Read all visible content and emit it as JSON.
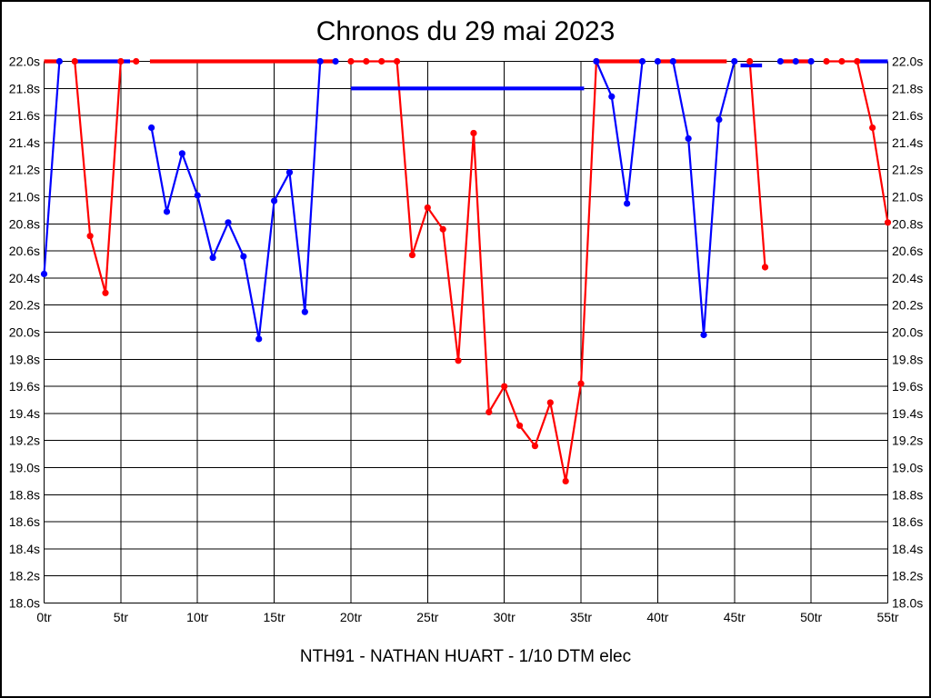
{
  "title": "Chronos du 29 mai 2023",
  "subtitle": "NTH91 - NATHAN HUART - 1/10 DTM elec",
  "colors": {
    "background": "#ffffff",
    "border": "#000000",
    "grid": "#000000",
    "text": "#000000",
    "series_blue": "#0000ff",
    "series_red": "#ff0000"
  },
  "chart_data": {
    "type": "line",
    "title": "Chronos du 29 mai 2023",
    "caption": "NTH91 - NATHAN HUART - 1/10 DTM elec",
    "x_unit": "tr",
    "y_unit": "s",
    "xlim": [
      0,
      55
    ],
    "ylim": [
      18.0,
      22.0
    ],
    "y_clip_max": 22.0,
    "grid": true,
    "legend": false,
    "x_ticks": [
      0,
      5,
      10,
      15,
      20,
      25,
      30,
      35,
      40,
      45,
      50,
      55
    ],
    "x_tick_labels": [
      "0tr",
      "5tr",
      "10tr",
      "15tr",
      "20tr",
      "25tr",
      "30tr",
      "35tr",
      "40tr",
      "45tr",
      "50tr",
      "55tr"
    ],
    "y_ticks": [
      22.0,
      21.8,
      21.6,
      21.4,
      21.2,
      21.0,
      20.8,
      20.6,
      20.4,
      20.2,
      20.0,
      19.8,
      19.6,
      19.4,
      19.2,
      19.0,
      18.8,
      18.6,
      18.4,
      18.2,
      18.0
    ],
    "y_tick_labels": [
      "22.0s",
      "21.8s",
      "21.6s",
      "21.4s",
      "21.2s",
      "21.0s",
      "20.8s",
      "20.6s",
      "20.4s",
      "20.2s",
      "20.0s",
      "19.8s",
      "19.6s",
      "19.4s",
      "19.2s",
      "19.0s",
      "18.8s",
      "18.6s",
      "18.4s",
      "18.2s",
      "18.0s"
    ],
    "series": [
      {
        "name": "blue",
        "color": "#0000ff",
        "runs": [
          {
            "markers": true,
            "points": [
              [
                0,
                20.43
              ],
              [
                1,
                22.0
              ]
            ]
          },
          {
            "markers": false,
            "points": [
              [
                2,
                22.0
              ],
              [
                5.6,
                22.0
              ]
            ]
          },
          {
            "markers": true,
            "points": [
              [
                7,
                21.51
              ],
              [
                8,
                20.89
              ],
              [
                9,
                21.32
              ],
              [
                10,
                21.01
              ],
              [
                11,
                20.55
              ],
              [
                12,
                20.81
              ],
              [
                13,
                20.56
              ],
              [
                14,
                19.95
              ],
              [
                15,
                20.97
              ],
              [
                16,
                21.18
              ],
              [
                17,
                20.15
              ],
              [
                18,
                22.0
              ]
            ]
          },
          {
            "markers": true,
            "points": [
              [
                19,
                22.0
              ]
            ]
          },
          {
            "markers": false,
            "points": [
              [
                20,
                21.8
              ],
              [
                35.2,
                21.8
              ]
            ]
          },
          {
            "markers": true,
            "points": [
              [
                36,
                22.0
              ],
              [
                37,
                21.74
              ],
              [
                38,
                20.95
              ],
              [
                39,
                22.0
              ]
            ]
          },
          {
            "markers": true,
            "points": [
              [
                40,
                22.0
              ]
            ]
          },
          {
            "markers": true,
            "points": [
              [
                41,
                22.0
              ],
              [
                42,
                21.43
              ],
              [
                43,
                19.98
              ],
              [
                44,
                21.57
              ],
              [
                45,
                22.0
              ]
            ]
          },
          {
            "markers": false,
            "points": [
              [
                45.4,
                21.97
              ],
              [
                46.8,
                21.97
              ]
            ]
          },
          {
            "markers": true,
            "points": [
              [
                48,
                22.0
              ]
            ]
          },
          {
            "markers": true,
            "points": [
              [
                49,
                22.0
              ]
            ]
          },
          {
            "markers": true,
            "points": [
              [
                50,
                22.0
              ]
            ]
          },
          {
            "markers": false,
            "points": [
              [
                53,
                22.0
              ],
              [
                55,
                22.0
              ]
            ]
          }
        ]
      },
      {
        "name": "red",
        "color": "#ff0000",
        "runs": [
          {
            "markers": false,
            "points": [
              [
                0,
                22.0
              ],
              [
                0.95,
                22.0
              ]
            ]
          },
          {
            "markers": true,
            "points": [
              [
                2,
                22.0
              ],
              [
                3,
                20.71
              ],
              [
                4,
                20.29
              ],
              [
                5,
                22.0
              ],
              [
                6,
                22.0
              ]
            ]
          },
          {
            "markers": false,
            "points": [
              [
                6.9,
                22.0
              ],
              [
                19,
                22.0
              ]
            ]
          },
          {
            "markers": true,
            "points": [
              [
                20,
                22.0
              ],
              [
                21,
                22.0
              ],
              [
                22,
                22.0
              ],
              [
                23,
                22.0
              ],
              [
                24,
                20.57
              ],
              [
                25,
                20.92
              ],
              [
                26,
                20.76
              ],
              [
                27,
                19.79
              ],
              [
                28,
                21.47
              ],
              [
                29,
                19.41
              ],
              [
                30,
                19.6
              ],
              [
                31,
                19.31
              ],
              [
                32,
                19.16
              ],
              [
                33,
                19.48
              ],
              [
                34,
                18.9
              ],
              [
                35,
                19.62
              ],
              [
                36,
                22.0
              ]
            ]
          },
          {
            "markers": false,
            "points": [
              [
                36,
                22.0
              ],
              [
                39,
                22.0
              ]
            ]
          },
          {
            "markers": false,
            "points": [
              [
                40,
                22.0
              ],
              [
                44.5,
                22.0
              ]
            ]
          },
          {
            "markers": true,
            "points": [
              [
                46,
                22.0
              ],
              [
                47,
                20.48
              ]
            ]
          },
          {
            "markers": false,
            "points": [
              [
                48,
                22.0
              ],
              [
                50,
                22.0
              ]
            ]
          },
          {
            "markers": true,
            "points": [
              [
                51,
                22.0
              ],
              [
                52,
                22.0
              ],
              [
                53,
                22.0
              ],
              [
                54,
                21.51
              ],
              [
                55,
                20.81
              ]
            ]
          }
        ]
      }
    ]
  }
}
